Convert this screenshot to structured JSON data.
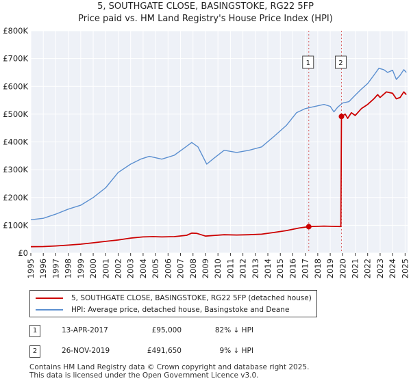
{
  "chart_data": {
    "type": "line",
    "title": "5, SOUTHGATE CLOSE, BASINGSTOKE, RG22 5FP",
    "subtitle": "Price paid vs. HM Land Registry's House Price Index (HPI)",
    "xlim": [
      1995,
      2025.2
    ],
    "ylim": [
      0,
      800000
    ],
    "y_ticks": [
      0,
      100000,
      200000,
      300000,
      400000,
      500000,
      600000,
      700000,
      800000
    ],
    "y_tick_labels": [
      "£0",
      "£100K",
      "£200K",
      "£300K",
      "£400K",
      "£500K",
      "£600K",
      "£700K",
      "£800K"
    ],
    "x_ticks": [
      1995,
      1996,
      1997,
      1998,
      1999,
      2000,
      2001,
      2002,
      2003,
      2004,
      2005,
      2006,
      2007,
      2008,
      2009,
      2010,
      2011,
      2012,
      2013,
      2014,
      2015,
      2016,
      2017,
      2018,
      2019,
      2020,
      2021,
      2022,
      2023,
      2024,
      2025
    ],
    "grid": true,
    "series": [
      {
        "name": "5, SOUTHGATE CLOSE, BASINGSTOKE, RG22 5FP (detached house)",
        "color": "#cc0000",
        "points": [
          [
            1995.0,
            23000
          ],
          [
            1996.0,
            23500
          ],
          [
            1997.0,
            25500
          ],
          [
            1998.0,
            28500
          ],
          [
            1999.0,
            32000
          ],
          [
            2000.0,
            37000
          ],
          [
            2001.0,
            42000
          ],
          [
            2002.0,
            47000
          ],
          [
            2003.0,
            54000
          ],
          [
            2004.0,
            58000
          ],
          [
            2004.8,
            59000
          ],
          [
            2005.5,
            58000
          ],
          [
            2006.5,
            59000
          ],
          [
            2007.5,
            64000
          ],
          [
            2007.9,
            72000
          ],
          [
            2008.3,
            71000
          ],
          [
            2009.0,
            61000
          ],
          [
            2009.6,
            63000
          ],
          [
            2010.5,
            66000
          ],
          [
            2011.5,
            65000
          ],
          [
            2012.5,
            66000
          ],
          [
            2013.5,
            68000
          ],
          [
            2014.5,
            74000
          ],
          [
            2015.5,
            81000
          ],
          [
            2016.5,
            90000
          ],
          [
            2017.28,
            95000
          ],
          [
            2017.8,
            96000
          ],
          [
            2018.5,
            97000
          ],
          [
            2019.3,
            96000
          ],
          [
            2019.85,
            95500
          ],
          [
            2019.9,
            491650
          ],
          [
            2020.2,
            500000
          ],
          [
            2020.4,
            485000
          ],
          [
            2020.7,
            505000
          ],
          [
            2021.0,
            495000
          ],
          [
            2021.5,
            520000
          ],
          [
            2022.0,
            535000
          ],
          [
            2022.5,
            555000
          ],
          [
            2022.8,
            570000
          ],
          [
            2023.0,
            560000
          ],
          [
            2023.5,
            580000
          ],
          [
            2024.0,
            575000
          ],
          [
            2024.3,
            555000
          ],
          [
            2024.6,
            560000
          ],
          [
            2024.9,
            580000
          ],
          [
            2025.1,
            570000
          ]
        ]
      },
      {
        "name": "HPI: Average price, detached house, Basingstoke and Deane",
        "color": "#5b8fd0",
        "points": [
          [
            1995.0,
            120000
          ],
          [
            1996.0,
            125000
          ],
          [
            1997.0,
            140000
          ],
          [
            1998.0,
            158000
          ],
          [
            1999.0,
            172000
          ],
          [
            2000.0,
            200000
          ],
          [
            2001.0,
            235000
          ],
          [
            2002.0,
            290000
          ],
          [
            2003.0,
            320000
          ],
          [
            2003.8,
            338000
          ],
          [
            2004.5,
            348000
          ],
          [
            2005.5,
            338000
          ],
          [
            2006.5,
            352000
          ],
          [
            2007.3,
            378000
          ],
          [
            2007.9,
            398000
          ],
          [
            2008.4,
            382000
          ],
          [
            2009.1,
            320000
          ],
          [
            2009.7,
            342000
          ],
          [
            2010.5,
            370000
          ],
          [
            2011.5,
            362000
          ],
          [
            2012.5,
            370000
          ],
          [
            2013.5,
            382000
          ],
          [
            2014.5,
            420000
          ],
          [
            2015.5,
            460000
          ],
          [
            2016.3,
            505000
          ],
          [
            2017.0,
            520000
          ],
          [
            2017.5,
            525000
          ],
          [
            2018.0,
            530000
          ],
          [
            2018.5,
            535000
          ],
          [
            2019.0,
            528000
          ],
          [
            2019.3,
            508000
          ],
          [
            2019.6,
            525000
          ],
          [
            2020.0,
            540000
          ],
          [
            2020.5,
            545000
          ],
          [
            2021.0,
            568000
          ],
          [
            2021.5,
            590000
          ],
          [
            2022.0,
            610000
          ],
          [
            2022.5,
            640000
          ],
          [
            2022.9,
            665000
          ],
          [
            2023.3,
            660000
          ],
          [
            2023.6,
            650000
          ],
          [
            2024.0,
            658000
          ],
          [
            2024.3,
            625000
          ],
          [
            2024.6,
            640000
          ],
          [
            2024.9,
            660000
          ],
          [
            2025.1,
            650000
          ]
        ]
      }
    ],
    "markers": [
      {
        "label": "1",
        "x": 2017.28,
        "y": 95000
      },
      {
        "label": "2",
        "x": 2019.9,
        "y": 491650
      }
    ]
  },
  "legend": {
    "property": "5, SOUTHGATE CLOSE, BASINGSTOKE, RG22 5FP (detached house)",
    "hpi": "HPI: Average price, detached house, Basingstoke and Deane"
  },
  "transactions": [
    {
      "num": "1",
      "date": "13-APR-2017",
      "price": "£95,000",
      "hpi": "82% ↓ HPI"
    },
    {
      "num": "2",
      "date": "26-NOV-2019",
      "price": "£491,650",
      "hpi": "9% ↓ HPI"
    }
  ],
  "footer": {
    "line1": "Contains HM Land Registry data © Crown copyright and database right 2025.",
    "line2": "This data is licensed under the Open Government Licence v3.0."
  }
}
